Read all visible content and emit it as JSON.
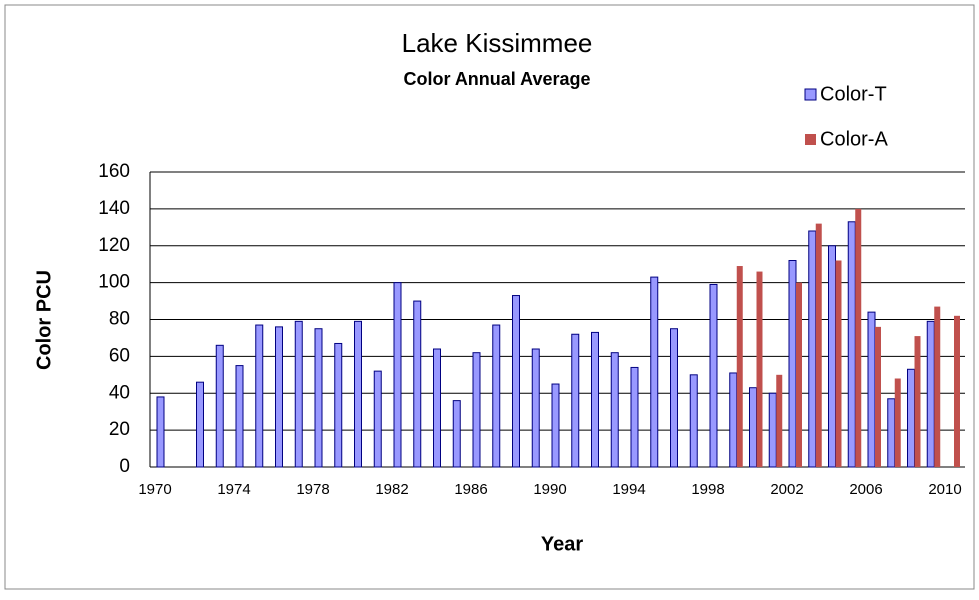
{
  "chart_data": {
    "type": "bar",
    "title": "Lake Kissimmee",
    "subtitle": "Color Annual Average",
    "x_label": "Year",
    "y_label": "Color PCU",
    "categories": [
      "1970",
      null,
      null,
      null,
      "1974",
      null,
      null,
      null,
      "1978",
      null,
      null,
      null,
      "1982",
      null,
      null,
      null,
      "1986",
      null,
      null,
      null,
      "1990",
      null,
      null,
      null,
      "1994",
      null,
      null,
      null,
      "1998",
      null,
      null,
      null,
      "2002",
      null,
      null,
      null,
      "2006",
      null,
      null,
      null,
      "2010"
    ],
    "series": [
      {
        "name": "Color-T",
        "color": "#9999ff",
        "values": [
          38,
          null,
          46,
          66,
          55,
          77,
          76,
          79,
          75,
          67,
          79,
          52,
          100,
          90,
          64,
          36,
          62,
          77,
          93,
          64,
          45,
          72,
          73,
          62,
          54,
          103,
          75,
          50,
          99,
          51,
          43,
          40,
          112,
          128,
          120,
          133,
          84,
          37,
          53,
          79,
          null
        ]
      },
      {
        "name": "Color-A",
        "color": "#c0504d",
        "values": [
          null,
          null,
          null,
          null,
          null,
          null,
          null,
          null,
          null,
          null,
          null,
          null,
          null,
          null,
          null,
          null,
          null,
          null,
          null,
          null,
          null,
          null,
          null,
          null,
          null,
          null,
          null,
          null,
          null,
          109,
          106,
          50,
          100,
          132,
          112,
          140,
          76,
          48,
          71,
          87,
          82
        ]
      }
    ],
    "ylim": [
      0,
      160
    ],
    "yticks": [
      0,
      20,
      40,
      60,
      80,
      100,
      120,
      140,
      160
    ],
    "grid": true,
    "legend": "top-right"
  }
}
